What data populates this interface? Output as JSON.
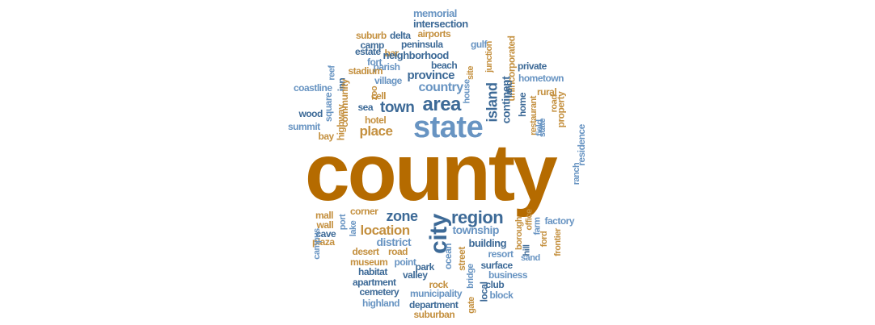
{
  "palette": {
    "dark_blue": "#3d6a97",
    "light_blue": "#6894c2",
    "orange": "#b56b00",
    "tan": "#c4903f"
  },
  "words": [
    {
      "text": "county",
      "color": "orange",
      "rotated": false
    },
    {
      "text": "state",
      "color": "light_blue",
      "rotated": false
    },
    {
      "text": "area",
      "color": "dark_blue",
      "rotated": false
    },
    {
      "text": "city",
      "color": "dark_blue",
      "rotated": true
    },
    {
      "text": "region",
      "color": "dark_blue",
      "rotated": false
    },
    {
      "text": "zone",
      "color": "dark_blue",
      "rotated": false
    },
    {
      "text": "location",
      "color": "tan",
      "rotated": false
    },
    {
      "text": "town",
      "color": "dark_blue",
      "rotated": false
    },
    {
      "text": "country",
      "color": "light_blue",
      "rotated": false
    },
    {
      "text": "place",
      "color": "tan",
      "rotated": false
    },
    {
      "text": "island",
      "color": "dark_blue",
      "rotated": true
    },
    {
      "text": "province",
      "color": "dark_blue",
      "rotated": false
    },
    {
      "text": "continent",
      "color": "dark_blue",
      "rotated": true
    },
    {
      "text": "township",
      "color": "light_blue",
      "rotated": false
    },
    {
      "text": "district",
      "color": "light_blue",
      "rotated": false
    },
    {
      "text": "building",
      "color": "dark_blue",
      "rotated": false
    },
    {
      "text": "memorial",
      "color": "light_blue",
      "rotated": false
    },
    {
      "text": "intersection",
      "color": "dark_blue",
      "rotated": false
    },
    {
      "text": "delta",
      "color": "dark_blue",
      "rotated": false
    },
    {
      "text": "suburb",
      "color": "tan",
      "rotated": false
    },
    {
      "text": "airports",
      "color": "tan",
      "rotated": false
    },
    {
      "text": "camp",
      "color": "dark_blue",
      "rotated": false
    },
    {
      "text": "peninsula",
      "color": "dark_blue",
      "rotated": false
    },
    {
      "text": "gulf",
      "color": "light_blue",
      "rotated": false
    },
    {
      "text": "estate",
      "color": "dark_blue",
      "rotated": false
    },
    {
      "text": "bar",
      "color": "tan",
      "rotated": false
    },
    {
      "text": "neighborhood",
      "color": "dark_blue",
      "rotated": false
    },
    {
      "text": "fort",
      "color": "light_blue",
      "rotated": false
    },
    {
      "text": "parish",
      "color": "light_blue",
      "rotated": false
    },
    {
      "text": "beach",
      "color": "dark_blue",
      "rotated": false
    },
    {
      "text": "stadium",
      "color": "tan",
      "rotated": false
    },
    {
      "text": "village",
      "color": "light_blue",
      "rotated": false
    },
    {
      "text": "coastline",
      "color": "light_blue",
      "rotated": false
    },
    {
      "text": "inn",
      "color": "dark_blue",
      "rotated": true
    },
    {
      "text": "reef",
      "color": "light_blue",
      "rotated": true
    },
    {
      "text": "square",
      "color": "light_blue",
      "rotated": true
    },
    {
      "text": "community",
      "color": "tan",
      "rotated": true
    },
    {
      "text": "highway",
      "color": "tan",
      "rotated": true
    },
    {
      "text": "zoo",
      "color": "tan",
      "rotated": true
    },
    {
      "text": "cell",
      "color": "tan",
      "rotated": false
    },
    {
      "text": "sea",
      "color": "dark_blue",
      "rotated": false
    },
    {
      "text": "house",
      "color": "light_blue",
      "rotated": true
    },
    {
      "text": "site",
      "color": "tan",
      "rotated": true
    },
    {
      "text": "junction",
      "color": "tan",
      "rotated": true
    },
    {
      "text": "unincorporated",
      "color": "tan",
      "rotated": true
    },
    {
      "text": "land",
      "color": "dark_blue",
      "rotated": true
    },
    {
      "text": "restaurant",
      "color": "tan",
      "rotated": true
    },
    {
      "text": "home",
      "color": "dark_blue",
      "rotated": true
    },
    {
      "text": "private",
      "color": "dark_blue",
      "rotated": false
    },
    {
      "text": "hometown",
      "color": "light_blue",
      "rotated": false
    },
    {
      "text": "rural",
      "color": "tan",
      "rotated": false
    },
    {
      "text": "road",
      "color": "tan",
      "rotated": true
    },
    {
      "text": "property",
      "color": "tan",
      "rotated": true
    },
    {
      "text": "state",
      "color": "light_blue",
      "rotated": true
    },
    {
      "text": "field",
      "color": "light_blue",
      "rotated": true
    },
    {
      "text": "wood",
      "color": "dark_blue",
      "rotated": false
    },
    {
      "text": "summit",
      "color": "light_blue",
      "rotated": false
    },
    {
      "text": "hotel",
      "color": "tan",
      "rotated": false
    },
    {
      "text": "bay",
      "color": "tan",
      "rotated": false
    },
    {
      "text": "residence",
      "color": "light_blue",
      "rotated": true
    },
    {
      "text": "ranch",
      "color": "light_blue",
      "rotated": true
    },
    {
      "text": "corner",
      "color": "tan",
      "rotated": false
    },
    {
      "text": "mall",
      "color": "tan",
      "rotated": false
    },
    {
      "text": "port",
      "color": "light_blue",
      "rotated": true
    },
    {
      "text": "lake",
      "color": "light_blue",
      "rotated": true
    },
    {
      "text": "wall",
      "color": "tan",
      "rotated": false
    },
    {
      "text": "cave",
      "color": "dark_blue",
      "rotated": false
    },
    {
      "text": "plaza",
      "color": "tan",
      "rotated": false
    },
    {
      "text": "campus",
      "color": "light_blue",
      "rotated": true
    },
    {
      "text": "desert",
      "color": "tan",
      "rotated": false
    },
    {
      "text": "road",
      "color": "tan",
      "rotated": false
    },
    {
      "text": "museum",
      "color": "tan",
      "rotated": false
    },
    {
      "text": "point",
      "color": "light_blue",
      "rotated": false
    },
    {
      "text": "park",
      "color": "dark_blue",
      "rotated": false
    },
    {
      "text": "ocean",
      "color": "light_blue",
      "rotated": true
    },
    {
      "text": "street",
      "color": "tan",
      "rotated": true
    },
    {
      "text": "bridge",
      "color": "light_blue",
      "rotated": true
    },
    {
      "text": "local",
      "color": "dark_blue",
      "rotated": true
    },
    {
      "text": "gate",
      "color": "tan",
      "rotated": true
    },
    {
      "text": "borough",
      "color": "tan",
      "rotated": true
    },
    {
      "text": "farm",
      "color": "light_blue",
      "rotated": true
    },
    {
      "text": "office",
      "color": "tan",
      "rotated": true
    },
    {
      "text": "hill",
      "color": "dark_blue",
      "rotated": true
    },
    {
      "text": "ford",
      "color": "tan",
      "rotated": true
    },
    {
      "text": "frontier",
      "color": "tan",
      "rotated": true
    },
    {
      "text": "factory",
      "color": "light_blue",
      "rotated": false
    },
    {
      "text": "resort",
      "color": "light_blue",
      "rotated": false
    },
    {
      "text": "sand",
      "color": "light_blue",
      "rotated": false
    },
    {
      "text": "surface",
      "color": "dark_blue",
      "rotated": false
    },
    {
      "text": "business",
      "color": "light_blue",
      "rotated": false
    },
    {
      "text": "club",
      "color": "dark_blue",
      "rotated": false
    },
    {
      "text": "block",
      "color": "light_blue",
      "rotated": false
    },
    {
      "text": "habitat",
      "color": "dark_blue",
      "rotated": false
    },
    {
      "text": "valley",
      "color": "dark_blue",
      "rotated": false
    },
    {
      "text": "apartment",
      "color": "dark_blue",
      "rotated": false
    },
    {
      "text": "rock",
      "color": "tan",
      "rotated": false
    },
    {
      "text": "cemetery",
      "color": "dark_blue",
      "rotated": false
    },
    {
      "text": "municipality",
      "color": "light_blue",
      "rotated": false
    },
    {
      "text": "highland",
      "color": "light_blue",
      "rotated": false
    },
    {
      "text": "department",
      "color": "dark_blue",
      "rotated": false
    },
    {
      "text": "suburban",
      "color": "tan",
      "rotated": false
    }
  ]
}
